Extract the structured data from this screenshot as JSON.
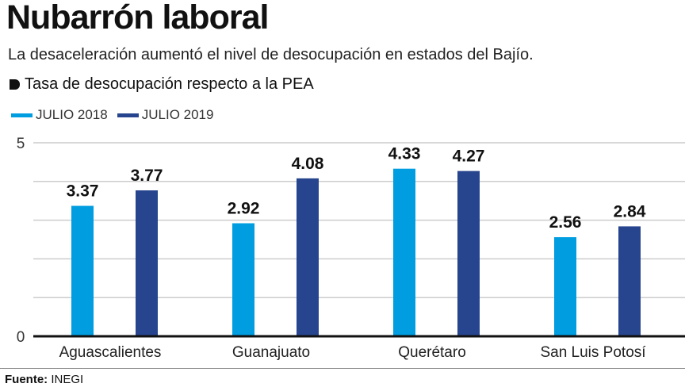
{
  "title": "Nubarrón laboral",
  "subtitle": "La desaceleración aumentó el nivel de desocupación en estados del Bajío.",
  "chart_heading": "Tasa de desocupación respecto a la PEA",
  "source_label": "Fuente:",
  "source_value": "INEGI",
  "chart_data": {
    "type": "bar",
    "categories": [
      "Aguascalientes",
      "Guanajuato",
      "Querétaro",
      "San Luis Potosí"
    ],
    "series": [
      {
        "name": "JULIO 2018",
        "color": "#009ee0",
        "values": [
          3.37,
          2.92,
          4.33,
          2.56
        ]
      },
      {
        "name": "JULIO 2019",
        "color": "#27458e",
        "values": [
          3.77,
          4.08,
          4.27,
          2.84
        ]
      }
    ],
    "ylim": [
      0,
      5
    ],
    "yticks": [
      0,
      1,
      2,
      3,
      4,
      5
    ],
    "ytick_labels": [
      "0",
      "",
      "",
      "",
      "",
      "5"
    ],
    "grid": true,
    "legend": "top-left"
  }
}
